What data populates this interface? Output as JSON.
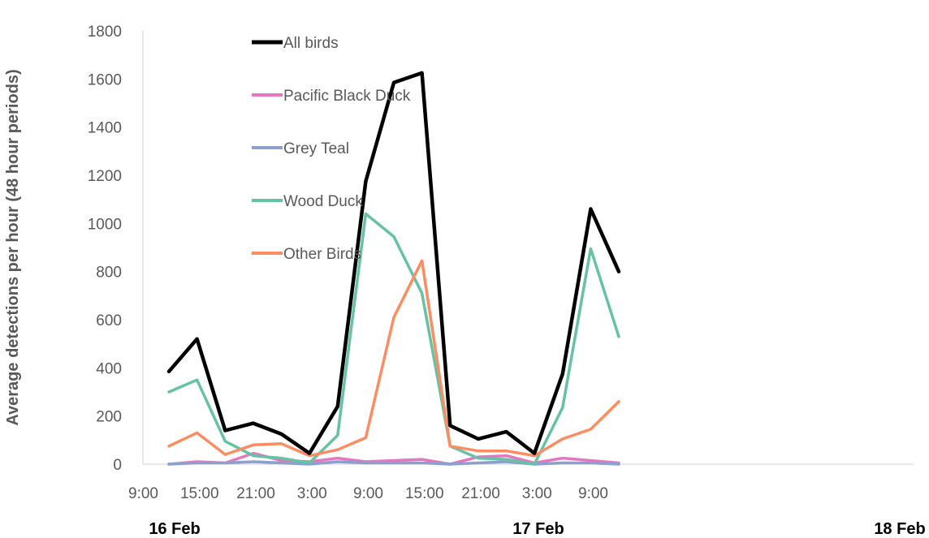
{
  "chart_data": {
    "type": "line",
    "ylabel": "Average detections per hour (48 hour periods)",
    "ylim": [
      0,
      1800
    ],
    "y_ticks": [
      "0",
      "200",
      "400",
      "600",
      "800",
      "1000",
      "1200",
      "1400",
      "1600",
      "1800"
    ],
    "x_tick_labels": [
      "9:00",
      "15:00",
      "21:00",
      "3:00",
      "9:00",
      "15:00",
      "21:00",
      "3:00",
      "9:00"
    ],
    "day_labels": [
      "16 Feb",
      "17 Feb",
      "18 Feb"
    ],
    "x": [
      "16 Feb 12:00",
      "16 Feb 15:00",
      "16 Feb 18:00",
      "16 Feb 21:00",
      "17 Feb 0:00",
      "17 Feb 3:00",
      "17 Feb 6:00",
      "17 Feb 9:00",
      "17 Feb 12:00",
      "17 Feb 15:00",
      "17 Feb 18:00",
      "17 Feb 21:00",
      "18 Feb 0:00",
      "18 Feb 3:00",
      "18 Feb 6:00",
      "18 Feb 9:00",
      "18 Feb 12:00"
    ],
    "grid": false,
    "legend_position": "top-left",
    "series": [
      {
        "name": "All birds",
        "color": "#000000",
        "values": [
          385,
          520,
          140,
          170,
          125,
          45,
          240,
          1175,
          1585,
          1625,
          160,
          105,
          135,
          45,
          375,
          1060,
          800
        ]
      },
      {
        "name": "Pacific Black Duck",
        "color": "#e377c2",
        "values": [
          0,
          10,
          5,
          45,
          15,
          10,
          25,
          10,
          15,
          20,
          0,
          30,
          35,
          5,
          25,
          15,
          5
        ]
      },
      {
        "name": "Grey Teal",
        "color": "#8da0cb",
        "values": [
          0,
          5,
          5,
          10,
          5,
          0,
          10,
          5,
          5,
          5,
          0,
          5,
          10,
          0,
          5,
          5,
          0
        ]
      },
      {
        "name": "Wood Duck",
        "color": "#66c2a5",
        "values": [
          300,
          350,
          95,
          35,
          25,
          5,
          120,
          1040,
          945,
          710,
          75,
          25,
          20,
          0,
          235,
          895,
          530
        ]
      },
      {
        "name": "Other Birds",
        "color": "#fc8d62",
        "values": [
          75,
          130,
          40,
          80,
          85,
          35,
          60,
          110,
          610,
          845,
          75,
          55,
          55,
          35,
          105,
          145,
          260
        ]
      }
    ]
  }
}
